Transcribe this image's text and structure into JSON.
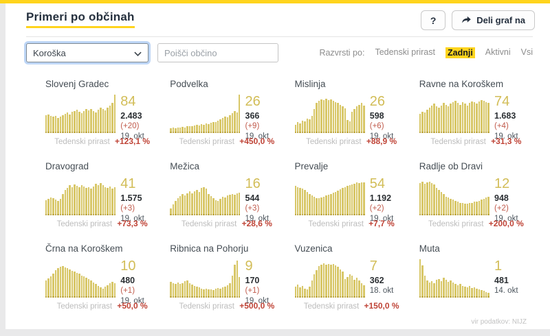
{
  "page": {
    "title": "Primeri po občinah",
    "help_label": "?",
    "share_label": "Deli graf na",
    "source": "vir podatkov: NIJZ"
  },
  "filters": {
    "region_value": "Koroška",
    "search_placeholder": "Poišči občino",
    "sort_label": "Razvrsti po:",
    "sort_options": [
      {
        "label": "Tedenski prirast",
        "active": false
      },
      {
        "label": "Zadnji",
        "active": true
      },
      {
        "label": "Aktivni",
        "active": false
      },
      {
        "label": "Vsi",
        "active": false
      }
    ]
  },
  "labels": {
    "growth_label": "Tedenski prirast"
  },
  "colors": {
    "accent_yellow": "#ffd41d",
    "bar_gold": "#d8c768",
    "bar_gold_dark": "#bfa944",
    "number_gold": "#d2bd57",
    "negative_red": "#bf4336"
  },
  "municipalities": [
    {
      "name": "Slovenj Gradec",
      "last_value": "84",
      "total": "2.483",
      "delta": "(+20)",
      "date": "19. okt",
      "growth": "+123,1 %",
      "bars": [
        46,
        48,
        45,
        43,
        44,
        40,
        42,
        47,
        50,
        53,
        48,
        55,
        58,
        60,
        55,
        52,
        57,
        62,
        59,
        63,
        57,
        53,
        60,
        66,
        63,
        59,
        66,
        72,
        78,
        100
      ]
    },
    {
      "name": "Podvelka",
      "last_value": "26",
      "total": "366",
      "delta": "(+9)",
      "date": "19. okt",
      "growth": "+450,0 %",
      "bars": [
        13,
        14,
        12,
        15,
        14,
        16,
        15,
        17,
        18,
        17,
        19,
        21,
        20,
        23,
        22,
        25,
        24,
        27,
        29,
        28,
        32,
        35,
        39,
        43,
        41,
        47,
        52,
        57,
        54,
        100
      ]
    },
    {
      "name": "Mislinja",
      "last_value": "26",
      "total": "598",
      "delta": "(+6)",
      "date": "19. okt",
      "growth": "+88,9 %",
      "bars": [
        22,
        28,
        25,
        32,
        30,
        38,
        35,
        45,
        62,
        78,
        84,
        88,
        85,
        90,
        86,
        88,
        84,
        81,
        78,
        74,
        70,
        64,
        34,
        30,
        56,
        62,
        70,
        74,
        78,
        72
      ]
    },
    {
      "name": "Ravne na Koroškem",
      "last_value": "74",
      "total": "1.683",
      "delta": "(+4)",
      "date": "19. okt",
      "growth": "+31,3 %",
      "bars": [
        50,
        56,
        53,
        60,
        66,
        72,
        76,
        70,
        66,
        72,
        78,
        74,
        70,
        76,
        80,
        84,
        78,
        74,
        80,
        76,
        72,
        78,
        82,
        80,
        76,
        82,
        86,
        84,
        80,
        78
      ]
    },
    {
      "name": "Dravograd",
      "last_value": "41",
      "total": "1.575",
      "delta": "(+3)",
      "date": "19. okt",
      "growth": "+73,3 %",
      "bars": [
        40,
        43,
        46,
        44,
        41,
        38,
        42,
        56,
        66,
        72,
        78,
        74,
        80,
        76,
        73,
        78,
        75,
        71,
        74,
        69,
        75,
        82,
        79,
        84,
        78,
        73,
        71,
        75,
        69,
        73
      ]
    },
    {
      "name": "Mežica",
      "last_value": "16",
      "total": "544",
      "delta": "(+3)",
      "date": "19. okt",
      "growth": "+28,6 %",
      "bars": [
        18,
        28,
        38,
        44,
        50,
        56,
        52,
        58,
        62,
        57,
        63,
        66,
        61,
        72,
        74,
        69,
        56,
        50,
        45,
        40,
        38,
        43,
        49,
        46,
        51,
        53,
        56,
        54,
        57,
        59
      ]
    },
    {
      "name": "Prevalje",
      "last_value": "54",
      "total": "1.192",
      "delta": "(+2)",
      "date": "19. okt",
      "growth": "+7,7 %",
      "bars": [
        76,
        73,
        71,
        69,
        66,
        61,
        56,
        51,
        48,
        45,
        44,
        46,
        48,
        51,
        53,
        56,
        59,
        61,
        64,
        67,
        71,
        73,
        76,
        79,
        81,
        83,
        85,
        84,
        86,
        85
      ]
    },
    {
      "name": "Radlje ob Dravi",
      "last_value": "12",
      "total": "948",
      "delta": "(+2)",
      "date": "19. okt",
      "growth": "+200,0 %",
      "bars": [
        84,
        87,
        82,
        86,
        88,
        84,
        80,
        71,
        66,
        61,
        56,
        49,
        46,
        43,
        41,
        38,
        35,
        33,
        32,
        30,
        30,
        32,
        33,
        35,
        36,
        38,
        41,
        43,
        46,
        49
      ]
    },
    {
      "name": "Črna na Koroškem",
      "last_value": "10",
      "total": "480",
      "delta": "(+1)",
      "date": "19. okt",
      "growth": "+50,0 %",
      "bars": [
        44,
        50,
        56,
        62,
        72,
        77,
        80,
        82,
        79,
        76,
        73,
        70,
        68,
        65,
        62,
        58,
        55,
        52,
        48,
        44,
        40,
        36,
        31,
        27,
        24,
        28,
        33,
        37,
        41,
        38
      ]
    },
    {
      "name": "Ribnica na Pohorju",
      "last_value": "9",
      "total": "170",
      "delta": "(+1)",
      "date": "19. okt",
      "growth": "+500,0 %",
      "bars": [
        41,
        38,
        36,
        40,
        35,
        37,
        42,
        44,
        38,
        34,
        30,
        28,
        26,
        24,
        22,
        23,
        21,
        22,
        20,
        23,
        25,
        23,
        27,
        29,
        33,
        37,
        58,
        86,
        96,
        54
      ]
    },
    {
      "name": "Vuzenica",
      "last_value": "7",
      "total": "362",
      "delta": null,
      "date": "18. okt",
      "growth": "+150,0 %",
      "bars": [
        28,
        34,
        26,
        31,
        24,
        21,
        29,
        44,
        60,
        72,
        82,
        86,
        90,
        86,
        88,
        85,
        87,
        84,
        80,
        74,
        68,
        48,
        54,
        60,
        57,
        47,
        51,
        44,
        38,
        33
      ]
    },
    {
      "name": "Muta",
      "last_value": "1",
      "total": "481",
      "delta": null,
      "date": "14. okt",
      "growth": null,
      "bars": [
        100,
        84,
        58,
        44,
        40,
        42,
        37,
        46,
        49,
        43,
        51,
        46,
        41,
        44,
        39,
        35,
        33,
        36,
        31,
        29,
        27,
        30,
        25,
        27,
        23,
        21,
        19,
        17,
        15,
        13
      ]
    }
  ]
}
